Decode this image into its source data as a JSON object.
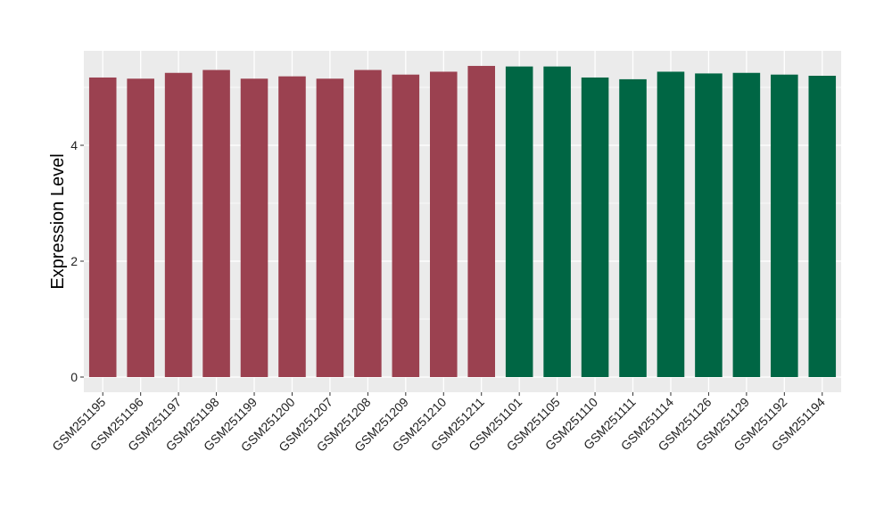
{
  "chart_data": {
    "type": "bar",
    "title": "",
    "xlabel": "",
    "ylabel": "Expression Level",
    "ylim": [
      0,
      5.65
    ],
    "yticks": [
      0,
      2,
      4
    ],
    "grid": true,
    "legend": "none",
    "categories": [
      "GSM251195",
      "GSM251196",
      "GSM251197",
      "GSM251198",
      "GSM251199",
      "GSM251200",
      "GSM251207",
      "GSM251208",
      "GSM251209",
      "GSM251210",
      "GSM251211",
      "GSM251101",
      "GSM251105",
      "GSM251110",
      "GSM251111",
      "GSM251114",
      "GSM251126",
      "GSM251129",
      "GSM251192",
      "GSM251194"
    ],
    "values": [
      5.17,
      5.15,
      5.25,
      5.3,
      5.15,
      5.19,
      5.15,
      5.3,
      5.22,
      5.27,
      5.37,
      5.36,
      5.36,
      5.17,
      5.14,
      5.27,
      5.24,
      5.25,
      5.22,
      5.2
    ],
    "groups": [
      "a",
      "a",
      "a",
      "a",
      "a",
      "a",
      "a",
      "a",
      "a",
      "a",
      "a",
      "b",
      "b",
      "b",
      "b",
      "b",
      "b",
      "b",
      "b",
      "b"
    ],
    "group_colors": {
      "a": "#9b4150",
      "b": "#006644"
    },
    "panel_color": "#ebebeb",
    "grid_color": "#ffffff"
  }
}
